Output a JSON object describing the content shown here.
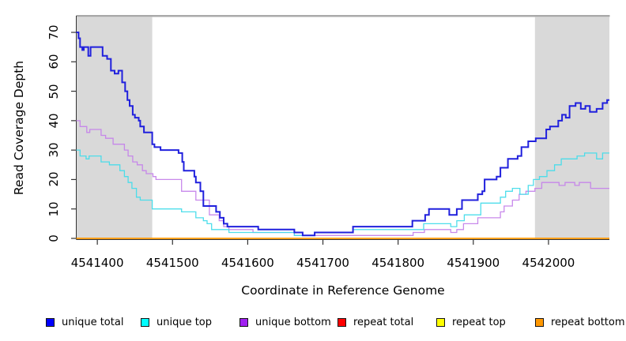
{
  "chart_data": {
    "type": "line",
    "line_style": "step",
    "title": "",
    "xlabel": "Coordinate in Reference Genome",
    "ylabel": "Read Coverage Depth",
    "xlim": [
      4541372,
      4542081
    ],
    "ylim": [
      0,
      75.6
    ],
    "x_ticks": [
      4541400,
      4541500,
      4541600,
      4541700,
      4541800,
      4541900,
      4542000
    ],
    "y_ticks": [
      0,
      10,
      20,
      30,
      40,
      50,
      60,
      70
    ],
    "grid": false,
    "legend_position": "bottom",
    "top_rule_colors": [
      "#8c8c8c",
      "#cccccc"
    ],
    "shaded_regions": [
      {
        "from": 4541372,
        "to": 4541473,
        "color": "#d9d9d9"
      },
      {
        "from": 4541982,
        "to": 4542081,
        "color": "#d9d9d9"
      }
    ],
    "series": [
      {
        "name": "unique total",
        "color": "#0000ff",
        "line_color": "#2020dd",
        "line_width": 2,
        "opacity": 1,
        "points": [
          [
            4541372,
            70
          ],
          [
            4541375,
            68
          ],
          [
            4541377,
            65
          ],
          [
            4541380,
            64
          ],
          [
            4541382,
            65
          ],
          [
            4541388,
            62
          ],
          [
            4541391,
            65
          ],
          [
            4541407,
            62
          ],
          [
            4541413,
            61
          ],
          [
            4541418,
            57
          ],
          [
            4541423,
            56
          ],
          [
            4541428,
            57
          ],
          [
            4541433,
            53
          ],
          [
            4541437,
            50
          ],
          [
            4541440,
            47
          ],
          [
            4541443,
            45
          ],
          [
            4541447,
            42
          ],
          [
            4541450,
            41
          ],
          [
            4541455,
            40
          ],
          [
            4541457,
            38
          ],
          [
            4541462,
            36
          ],
          [
            4541473,
            32
          ],
          [
            4541476,
            31
          ],
          [
            4541484,
            30
          ],
          [
            4541508,
            29
          ],
          [
            4541513,
            26
          ],
          [
            4541515,
            23
          ],
          [
            4541529,
            21
          ],
          [
            4541531,
            19
          ],
          [
            4541537,
            16
          ],
          [
            4541541,
            11
          ],
          [
            4541558,
            9
          ],
          [
            4541563,
            7
          ],
          [
            4541568,
            5
          ],
          [
            4541573,
            4
          ],
          [
            4541614,
            3
          ],
          [
            4541662,
            2
          ],
          [
            4541673,
            1
          ],
          [
            4541689,
            2
          ],
          [
            4541740,
            4
          ],
          [
            4541819,
            6
          ],
          [
            4541836,
            8
          ],
          [
            4541841,
            10
          ],
          [
            4541868,
            8
          ],
          [
            4541878,
            10
          ],
          [
            4541885,
            13
          ],
          [
            4541906,
            15
          ],
          [
            4541912,
            16
          ],
          [
            4541915,
            20
          ],
          [
            4541931,
            21
          ],
          [
            4541936,
            24
          ],
          [
            4541946,
            27
          ],
          [
            4541959,
            28
          ],
          [
            4541964,
            31
          ],
          [
            4541973,
            33
          ],
          [
            4541983,
            34
          ],
          [
            4541997,
            37
          ],
          [
            4542002,
            38
          ],
          [
            4542013,
            40
          ],
          [
            4542018,
            42
          ],
          [
            4542023,
            41
          ],
          [
            4542028,
            45
          ],
          [
            4542036,
            46
          ],
          [
            4542043,
            44
          ],
          [
            4542049,
            45
          ],
          [
            4542055,
            43
          ],
          [
            4542064,
            44
          ],
          [
            4542072,
            46
          ],
          [
            4542078,
            47
          ],
          [
            4542081,
            47
          ]
        ]
      },
      {
        "name": "unique top",
        "color": "#00ffff",
        "line_color": "#45dcea",
        "line_width": 1.3,
        "opacity": 0.95,
        "points": [
          [
            4541372,
            30
          ],
          [
            4541377,
            28
          ],
          [
            4541385,
            27
          ],
          [
            4541389,
            28
          ],
          [
            4541405,
            26
          ],
          [
            4541416,
            25
          ],
          [
            4541430,
            23
          ],
          [
            4541436,
            21
          ],
          [
            4541441,
            19
          ],
          [
            4541446,
            17
          ],
          [
            4541452,
            14
          ],
          [
            4541457,
            13
          ],
          [
            4541473,
            10
          ],
          [
            4541512,
            9
          ],
          [
            4541531,
            7
          ],
          [
            4541541,
            6
          ],
          [
            4541546,
            5
          ],
          [
            4541552,
            3
          ],
          [
            4541575,
            2
          ],
          [
            4541662,
            1
          ],
          [
            4541689,
            2
          ],
          [
            4541740,
            3
          ],
          [
            4541834,
            5
          ],
          [
            4541870,
            4
          ],
          [
            4541878,
            6
          ],
          [
            4541888,
            8
          ],
          [
            4541910,
            12
          ],
          [
            4541936,
            14
          ],
          [
            4541943,
            16
          ],
          [
            4541952,
            17
          ],
          [
            4541962,
            15
          ],
          [
            4541973,
            18
          ],
          [
            4541980,
            20
          ],
          [
            4541988,
            21
          ],
          [
            4541998,
            23
          ],
          [
            4542008,
            25
          ],
          [
            4542017,
            27
          ],
          [
            4542038,
            28
          ],
          [
            4542048,
            29
          ],
          [
            4542064,
            27
          ],
          [
            4542072,
            29
          ],
          [
            4542081,
            29
          ]
        ]
      },
      {
        "name": "unique bottom",
        "color": "#a020f0",
        "line_color": "#c583ea",
        "line_width": 1.3,
        "opacity": 0.95,
        "points": [
          [
            4541372,
            40
          ],
          [
            4541377,
            38
          ],
          [
            4541386,
            36
          ],
          [
            4541390,
            37
          ],
          [
            4541405,
            35
          ],
          [
            4541411,
            34
          ],
          [
            4541421,
            32
          ],
          [
            4541436,
            30
          ],
          [
            4541441,
            28
          ],
          [
            4541447,
            26
          ],
          [
            4541453,
            25
          ],
          [
            4541460,
            23
          ],
          [
            4541465,
            22
          ],
          [
            4541474,
            21
          ],
          [
            4541478,
            20
          ],
          [
            4541512,
            16
          ],
          [
            4541531,
            13
          ],
          [
            4541549,
            8
          ],
          [
            4541562,
            6
          ],
          [
            4541568,
            4
          ],
          [
            4541575,
            3
          ],
          [
            4541607,
            2
          ],
          [
            4541662,
            1
          ],
          [
            4541820,
            2
          ],
          [
            4541835,
            3
          ],
          [
            4541870,
            2
          ],
          [
            4541878,
            3
          ],
          [
            4541887,
            5
          ],
          [
            4541906,
            7
          ],
          [
            4541936,
            9
          ],
          [
            4541941,
            11
          ],
          [
            4541952,
            13
          ],
          [
            4541961,
            15
          ],
          [
            4541970,
            16
          ],
          [
            4541982,
            17
          ],
          [
            4541991,
            19
          ],
          [
            4542014,
            18
          ],
          [
            4542022,
            19
          ],
          [
            4542035,
            18
          ],
          [
            4542041,
            19
          ],
          [
            4542056,
            17
          ],
          [
            4542081,
            17
          ]
        ]
      },
      {
        "name": "repeat total",
        "color": "#ff0000",
        "line_color": "#ee1111",
        "line_width": 1,
        "opacity": 1,
        "points": [
          [
            4541372,
            0
          ],
          [
            4542081,
            0
          ]
        ]
      },
      {
        "name": "repeat top",
        "color": "#ffff00",
        "line_color": "#f5e400",
        "line_width": 1,
        "opacity": 1,
        "points": [
          [
            4541372,
            0
          ],
          [
            4542081,
            0
          ]
        ]
      },
      {
        "name": "repeat bottom",
        "color": "#ff9800",
        "line_color": "#ff9800",
        "line_width": 1.7,
        "opacity": 1,
        "points": [
          [
            4541372,
            0
          ],
          [
            4542081,
            0
          ]
        ]
      }
    ]
  }
}
